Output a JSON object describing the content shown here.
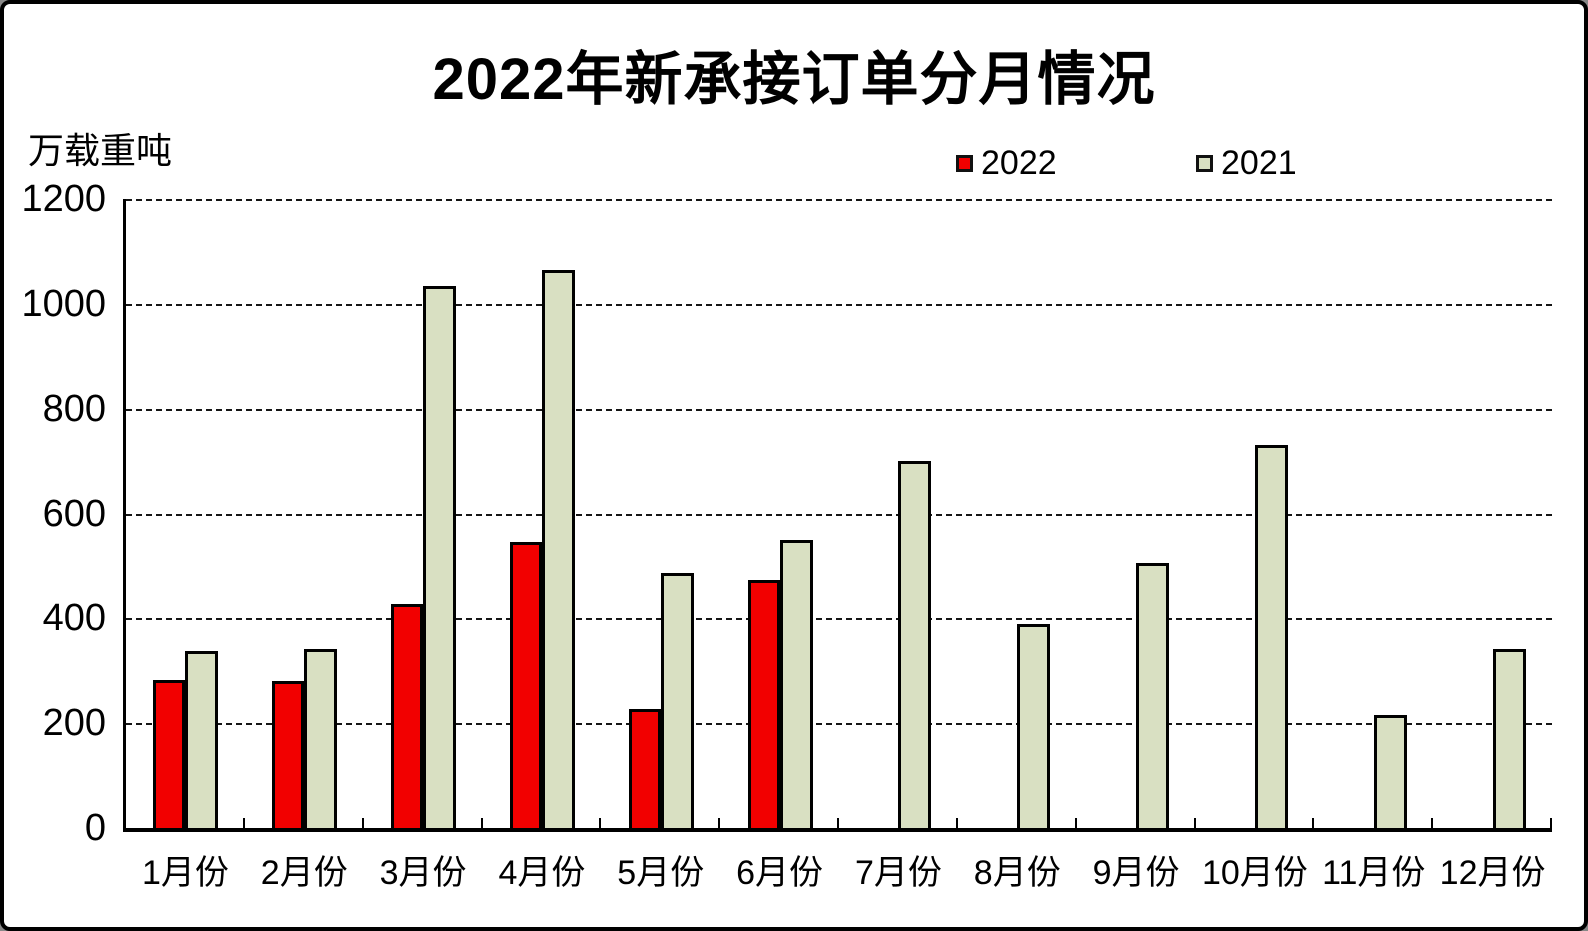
{
  "chart_data": {
    "type": "bar",
    "title": "2022年新承接订单分月情况",
    "ylabel": "万载重吨",
    "xlabel": "",
    "categories": [
      "1月份",
      "2月份",
      "3月份",
      "4月份",
      "5月份",
      "6月份",
      "7月份",
      "8月份",
      "9月份",
      "10月份",
      "11月份",
      "12月份"
    ],
    "series": [
      {
        "name": "2022",
        "color": "#f20000",
        "values": [
          282,
          280,
          428,
          545,
          228,
          473,
          null,
          null,
          null,
          null,
          null,
          null
        ]
      },
      {
        "name": "2021",
        "color": "#d9e0c2",
        "values": [
          338,
          341,
          1035,
          1065,
          486,
          549,
          700,
          390,
          505,
          730,
          216,
          341
        ]
      }
    ],
    "ylim": [
      0,
      1200
    ],
    "yticks": [
      0,
      200,
      400,
      600,
      800,
      1000,
      1200
    ],
    "grid": "horizontal-dashed",
    "legend_position": "top-right-inside",
    "bar_border_color": "#000000"
  }
}
